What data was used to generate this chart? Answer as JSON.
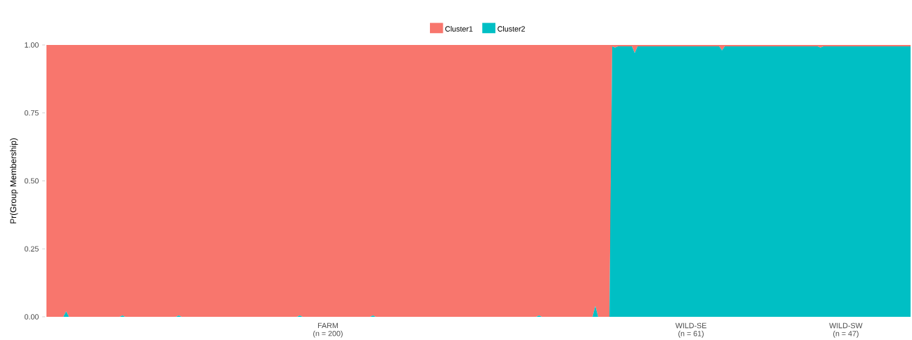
{
  "chart_data": {
    "type": "area",
    "stacked": true,
    "ylabel": "Pr(Group Membership)",
    "categories": [
      null,
      null,
      null,
      null,
      null,
      null,
      null,
      null,
      null,
      null,
      null,
      null,
      null,
      null,
      null,
      null,
      null,
      null,
      null,
      null,
      null,
      null,
      null,
      null,
      null,
      null,
      null,
      null,
      null,
      null,
      null,
      null,
      null,
      null,
      null,
      null,
      null,
      null,
      null,
      null,
      null,
      null,
      null,
      null,
      null,
      null,
      null,
      null,
      null,
      null,
      null,
      null,
      null,
      null,
      null,
      null,
      null,
      null,
      null,
      null,
      null,
      null,
      null,
      null,
      null,
      null,
      null,
      null,
      null,
      null,
      null,
      null,
      null,
      null,
      null,
      null,
      null,
      null,
      null,
      null,
      null,
      null,
      null,
      null,
      null,
      null,
      null,
      null,
      null,
      null,
      null,
      null,
      null,
      null,
      null,
      null,
      null,
      null,
      null,
      null,
      "FARM\n(n = 200)",
      null,
      null,
      null,
      null,
      null,
      null,
      null,
      null,
      null,
      null,
      null,
      null,
      null,
      null,
      null,
      null,
      null,
      null,
      null,
      null,
      null,
      null,
      null,
      null,
      null,
      null,
      null,
      null,
      null,
      null,
      null,
      null,
      null,
      null,
      null,
      null,
      null,
      null,
      null,
      null,
      null,
      null,
      null,
      null,
      null,
      null,
      null,
      null,
      null,
      null,
      null,
      null,
      null,
      null,
      null,
      null,
      null,
      null,
      null,
      null,
      null,
      null,
      null,
      null,
      null,
      null,
      null,
      null,
      null,
      null,
      null,
      null,
      null,
      null,
      null,
      null,
      null,
      null,
      null,
      null,
      null,
      null,
      null,
      null,
      null,
      null,
      null,
      null,
      null,
      null,
      null,
      null,
      null,
      null,
      null,
      null,
      null,
      null,
      null,
      null,
      null,
      null,
      null,
      null,
      null,
      null,
      null,
      null,
      null,
      null,
      null,
      null,
      null,
      null,
      null,
      null,
      null,
      null,
      null,
      null,
      null,
      null,
      null,
      null,
      null,
      null,
      null,
      null,
      "WILD-SE\n(n = 61)",
      null,
      null,
      null,
      null,
      null,
      null,
      null,
      null,
      null,
      null,
      null,
      null,
      null,
      null,
      null,
      null,
      null,
      null,
      null,
      null,
      null,
      null,
      null,
      null,
      null,
      null,
      null,
      null,
      null,
      null,
      null,
      null,
      null,
      null,
      null,
      null,
      null,
      null,
      null,
      null,
      null,
      null,
      null,
      null,
      null,
      null,
      null,
      null,
      null,
      null,
      null,
      null,
      null,
      null,
      "WILD-SW\n(n = 47)",
      null,
      null,
      null,
      null,
      null,
      null,
      null,
      null,
      null,
      null,
      null,
      null,
      null,
      null,
      null,
      null,
      null,
      null,
      null,
      null,
      null,
      null,
      null
    ],
    "series": [
      {
        "name": "Cluster2",
        "color": "#00bfc4",
        "values": [
          0,
          0,
          0,
          0,
          0,
          0,
          0,
          0.02,
          0,
          0,
          0,
          0,
          0,
          0,
          0,
          0,
          0,
          0,
          0,
          0,
          0,
          0,
          0,
          0,
          0,
          0,
          0,
          0.005,
          0,
          0,
          0,
          0,
          0,
          0,
          0,
          0,
          0,
          0,
          0,
          0,
          0,
          0,
          0,
          0,
          0,
          0,
          0,
          0.005,
          0,
          0,
          0,
          0,
          0,
          0,
          0,
          0,
          0,
          0,
          0,
          0,
          0,
          0,
          0,
          0,
          0,
          0,
          0,
          0,
          0,
          0,
          0,
          0,
          0,
          0,
          0,
          0,
          0,
          0,
          0,
          0,
          0,
          0,
          0,
          0,
          0,
          0,
          0,
          0,
          0,
          0,
          0.005,
          0,
          0,
          0,
          0,
          0,
          0,
          0,
          0,
          0,
          0,
          0,
          0,
          0,
          0,
          0,
          0,
          0,
          0,
          0,
          0,
          0,
          0,
          0,
          0,
          0,
          0.005,
          0,
          0,
          0,
          0,
          0,
          0,
          0,
          0,
          0,
          0,
          0,
          0,
          0,
          0,
          0,
          0,
          0,
          0,
          0,
          0,
          0,
          0,
          0,
          0,
          0,
          0,
          0,
          0,
          0,
          0,
          0,
          0,
          0,
          0,
          0,
          0,
          0,
          0,
          0,
          0,
          0,
          0,
          0,
          0,
          0,
          0,
          0,
          0,
          0,
          0,
          0,
          0,
          0,
          0,
          0,
          0,
          0,
          0,
          0.005,
          0,
          0,
          0,
          0,
          0,
          0,
          0,
          0,
          0,
          0,
          0,
          0,
          0,
          0,
          0,
          0,
          0,
          0,
          0,
          0.04,
          0,
          0,
          0,
          0,
          0,
          0.995,
          0.99,
          0.995,
          0.995,
          0.995,
          0.995,
          0.995,
          0.995,
          0.97,
          0.995,
          0.995,
          0.995,
          0.995,
          0.995,
          0.995,
          0.995,
          0.995,
          0.995,
          0.995,
          0.995,
          0.995,
          0.995,
          0.995,
          0.995,
          0.995,
          0.995,
          0.995,
          0.995,
          0.995,
          0.995,
          0.995,
          0.995,
          0.995,
          0.995,
          0.995,
          0.995,
          0.995,
          0.995,
          0.995,
          0.98,
          0.995,
          0.995,
          0.995,
          0.995,
          0.995,
          0.995,
          0.995,
          0.995,
          0.995,
          0.995,
          0.995,
          0.995,
          0.995,
          0.995,
          0.995,
          0.995,
          0.995,
          0.995,
          0.995,
          0.995,
          0.995,
          0.995,
          0.995,
          0.995,
          0.995,
          0.995,
          0.995,
          0.995,
          0.995,
          0.995,
          0.995,
          0.995,
          0.995,
          0.995,
          0.99,
          0.995,
          0.995,
          0.995,
          0.995,
          0.995,
          0.995,
          0.995,
          0.995,
          0.995,
          0.995,
          0.995,
          0.995,
          0.995,
          0.995,
          0.995,
          0.995,
          0.995,
          0.995,
          0.995,
          0.995,
          0.995,
          0.995,
          0.995,
          0.995,
          0.995,
          0.995,
          0.995,
          0.995,
          0.995,
          0.995,
          0.995,
          0.995
        ]
      },
      {
        "name": "Cluster1",
        "color": "#f8766d",
        "values": [
          1,
          1,
          1,
          1,
          1,
          1,
          1,
          0.98,
          1,
          1,
          1,
          1,
          1,
          1,
          1,
          1,
          1,
          1,
          1,
          1,
          1,
          1,
          1,
          1,
          1,
          1,
          1,
          0.995,
          1,
          1,
          1,
          1,
          1,
          1,
          1,
          1,
          1,
          1,
          1,
          1,
          1,
          1,
          1,
          1,
          1,
          1,
          1,
          0.995,
          1,
          1,
          1,
          1,
          1,
          1,
          1,
          1,
          1,
          1,
          1,
          1,
          1,
          1,
          1,
          1,
          1,
          1,
          1,
          1,
          1,
          1,
          1,
          1,
          1,
          1,
          1,
          1,
          1,
          1,
          1,
          1,
          1,
          1,
          1,
          1,
          1,
          1,
          1,
          1,
          1,
          1,
          0.995,
          1,
          1,
          1,
          1,
          1,
          1,
          1,
          1,
          1,
          1,
          1,
          1,
          1,
          1,
          1,
          1,
          1,
          1,
          1,
          1,
          1,
          1,
          1,
          1,
          1,
          0.995,
          1,
          1,
          1,
          1,
          1,
          1,
          1,
          1,
          1,
          1,
          1,
          1,
          1,
          1,
          1,
          1,
          1,
          1,
          1,
          1,
          1,
          1,
          1,
          1,
          1,
          1,
          1,
          1,
          1,
          1,
          1,
          1,
          1,
          1,
          1,
          1,
          1,
          1,
          1,
          1,
          1,
          1,
          1,
          1,
          1,
          1,
          1,
          1,
          1,
          1,
          1,
          1,
          1,
          1,
          1,
          1,
          1,
          1,
          0.995,
          1,
          1,
          1,
          1,
          1,
          1,
          1,
          1,
          1,
          1,
          1,
          1,
          1,
          1,
          1,
          1,
          1,
          1,
          1,
          0.96,
          1,
          1,
          1,
          1,
          1,
          0.005,
          0.01,
          0.005,
          0.005,
          0.005,
          0.005,
          0.005,
          0.005,
          0.03,
          0.005,
          0.005,
          0.005,
          0.005,
          0.005,
          0.005,
          0.005,
          0.005,
          0.005,
          0.005,
          0.005,
          0.005,
          0.005,
          0.005,
          0.005,
          0.005,
          0.005,
          0.005,
          0.005,
          0.005,
          0.005,
          0.005,
          0.005,
          0.005,
          0.005,
          0.005,
          0.005,
          0.005,
          0.005,
          0.005,
          0.02,
          0.005,
          0.005,
          0.005,
          0.005,
          0.005,
          0.005,
          0.005,
          0.005,
          0.005,
          0.005,
          0.005,
          0.005,
          0.005,
          0.005,
          0.005,
          0.005,
          0.005,
          0.005,
          0.005,
          0.005,
          0.005,
          0.005,
          0.005,
          0.005,
          0.005,
          0.005,
          0.005,
          0.005,
          0.005,
          0.005,
          0.005,
          0.005,
          0.005,
          0.005,
          0.01,
          0.005,
          0.005,
          0.005,
          0.005,
          0.005,
          0.005,
          0.005,
          0.005,
          0.005,
          0.005,
          0.005,
          0.005,
          0.005,
          0.005,
          0.005,
          0.005,
          0.005,
          0.005,
          0.005,
          0.005,
          0.005,
          0.005,
          0.005,
          0.005,
          0.005,
          0.005,
          0.005,
          0.005,
          0.005,
          0.005,
          0.005,
          0.005
        ]
      }
    ],
    "ylim": [
      0,
      1
    ],
    "yticks": [
      {
        "value": 0,
        "label": "0.00"
      },
      {
        "value": 0.25,
        "label": "0.25"
      },
      {
        "value": 0.5,
        "label": "0.50"
      },
      {
        "value": 0.75,
        "label": "0.75"
      },
      {
        "value": 1,
        "label": "1.00"
      }
    ],
    "legend": "top"
  }
}
